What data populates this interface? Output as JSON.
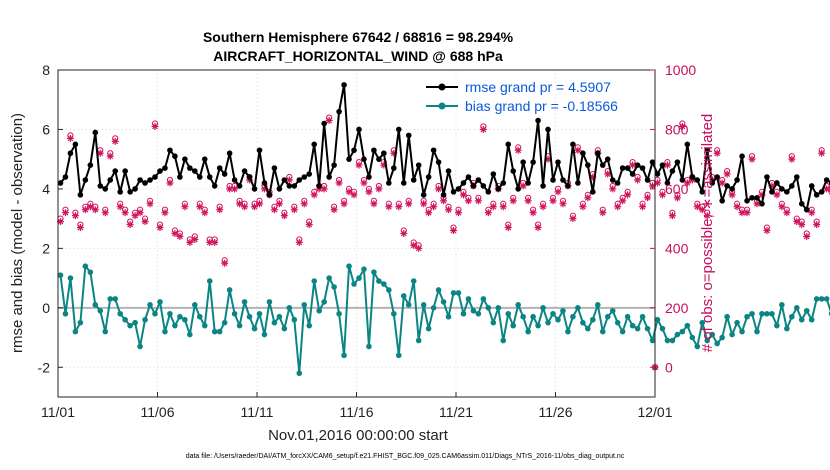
{
  "chart_data": {
    "type": "line",
    "title_line1": "Southern Hemisphere 67642 / 68816 = 98.294%",
    "title_line2": "AIRCRAFT_HORIZONTAL_WIND @ 688 hPa",
    "xlabel": "Nov.01,2016 00:00:00 start",
    "ylabel_left": "rmse and bias (model - observation)",
    "ylabel_right": "# of obs: o=possible; ∗=assimilated",
    "footnote": "data file: /Users/raeder/DAI/ATM_forcXX/CAM6_setup/f.e21.FHIST_BGC.f09_025.CAM6assim.011/Diags_NTrS_2016-11/obs_diag_output.nc",
    "x_ticks": [
      {
        "x": 0,
        "label": "11/01"
      },
      {
        "x": 5,
        "label": "11/06"
      },
      {
        "x": 10,
        "label": "11/11"
      },
      {
        "x": 15,
        "label": "11/16"
      },
      {
        "x": 20,
        "label": "11/21"
      },
      {
        "x": 25,
        "label": "11/26"
      },
      {
        "x": 30,
        "label": "12/01"
      }
    ],
    "xlim": [
      0,
      30
    ],
    "ylim_left": [
      -3,
      8
    ],
    "yticks_left": [
      -2,
      0,
      2,
      4,
      6,
      8
    ],
    "ylim_right": [
      -100,
      1000
    ],
    "yticks_right": [
      0,
      200,
      400,
      600,
      800,
      1000
    ],
    "step_days": 0.25,
    "legend": [
      {
        "label": "rmse grand pr = 4.5907",
        "color": "#000000"
      },
      {
        "label": "bias grand pr = -0.18566",
        "color": "#0b8584"
      }
    ],
    "colors": {
      "rmse": "#000000",
      "bias": "#0b8584",
      "obs": "#d1145e",
      "zero_line": "#b4b4b4"
    },
    "series": [
      {
        "name": "rmse",
        "values": [
          4.2,
          4.4,
          5.2,
          5.5,
          3.8,
          4.3,
          4.8,
          5.9,
          4.1,
          4.0,
          4.3,
          4.6,
          3.9,
          4.6,
          3.9,
          4.0,
          4.3,
          4.2,
          4.3,
          4.4,
          4.6,
          4.7,
          5.3,
          5.1,
          4.4,
          5.0,
          4.7,
          4.6,
          4.4,
          5.0,
          4.4,
          4.1,
          4.7,
          4.5,
          5.2,
          4.3,
          4.1,
          4.6,
          4.4,
          4.0,
          5.3,
          4.2,
          3.8,
          4.7,
          4.0,
          4.3,
          4.1,
          4.1,
          4.3,
          4.4,
          4.5,
          5.5,
          4.1,
          6.2,
          4.4,
          4.8,
          6.6,
          7.5,
          5.0,
          5.3,
          6.0,
          5.0,
          4.4,
          5.3,
          5.0,
          5.2,
          4.2,
          4.7,
          6.0,
          4.2,
          5.8,
          4.3,
          4.8,
          3.8,
          4.4,
          5.3,
          4.9,
          3.8,
          4.6,
          3.9,
          4.0,
          4.2,
          4.4,
          4.1,
          4.3,
          4.1,
          3.9,
          4.5,
          4.0,
          4.2,
          5.5,
          4.6,
          4.0,
          4.9,
          4.2,
          4.9,
          6.3,
          4.1,
          6.0,
          4.3,
          4.9,
          4.3,
          4.1,
          5.5,
          4.2,
          5.2,
          4.8,
          3.9,
          5.2,
          4.8,
          5.0,
          4.3,
          4.2,
          4.7,
          4.7,
          4.5,
          4.8,
          4.7,
          4.3,
          4.9,
          4.5,
          4.8,
          4.2,
          4.6,
          4.9,
          4.3,
          5.5,
          4.4,
          4.3,
          3.9,
          5.3,
          4.2,
          4.4,
          3.6,
          4.1,
          4.0,
          4.3,
          5.1,
          3.6,
          3.7,
          3.7,
          3.5,
          4.4,
          3.9,
          4.2,
          4.0,
          3.9,
          4.1,
          4.4,
          3.5,
          3.3,
          4.1,
          3.8,
          3.9,
          4.3,
          4.2,
          4.6,
          4.6
        ]
      },
      {
        "name": "bias",
        "values": [
          1.1,
          -0.2,
          1.0,
          -0.8,
          -0.5,
          1.4,
          1.2,
          0.1,
          -0.1,
          -0.8,
          0.3,
          0.3,
          -0.2,
          -0.4,
          -0.6,
          -0.5,
          -1.3,
          -0.4,
          0.1,
          -0.2,
          0.2,
          -0.8,
          -0.2,
          -0.6,
          -0.3,
          -0.4,
          -0.9,
          0.1,
          -0.3,
          -0.6,
          0.9,
          -0.8,
          -0.8,
          -0.5,
          0.6,
          -0.2,
          -0.6,
          0.2,
          -0.3,
          -0.7,
          -0.2,
          -0.9,
          0.2,
          -0.5,
          -0.3,
          -0.7,
          0.0,
          -0.4,
          -2.2,
          0.1,
          -0.6,
          0.9,
          -0.1,
          0.2,
          1.0,
          0.7,
          -0.2,
          -1.6,
          1.4,
          0.8,
          1.0,
          1.3,
          -1.3,
          1.2,
          0.9,
          0.8,
          0.6,
          -0.2,
          -1.6,
          0.4,
          0.1,
          0.9,
          -1.1,
          0.1,
          -0.7,
          0.0,
          0.6,
          0.2,
          -0.3,
          0.5,
          0.5,
          -0.2,
          0.3,
          -0.1,
          -0.2,
          0.3,
          0.0,
          -0.5,
          0.0,
          -1.1,
          -0.2,
          -0.6,
          0.1,
          -0.3,
          -0.8,
          -0.3,
          -0.6,
          0.0,
          -0.5,
          -0.2,
          -0.4,
          -0.1,
          -0.8,
          -0.3,
          0.0,
          -0.5,
          -0.7,
          -0.4,
          0.1,
          -0.8,
          -0.3,
          -0.1,
          -0.5,
          -0.8,
          -0.3,
          -0.6,
          -0.7,
          -0.3,
          -0.7,
          -1.1,
          -0.4,
          -0.7,
          -1.1,
          -1.1,
          -0.9,
          -0.8,
          -0.6,
          -1.0,
          -1.3,
          -0.5,
          -1.1,
          -0.9,
          -1.2,
          -1.0,
          -0.3,
          -0.9,
          -0.5,
          -0.8,
          -0.3,
          -0.2,
          -0.8,
          -0.2,
          -0.2,
          -0.2,
          -0.6,
          0.1,
          -0.7,
          -0.3,
          0.0,
          -0.4,
          -0.1,
          -0.4,
          0.3,
          0.3,
          0.3,
          -0.2
        ]
      },
      {
        "name": "obs_assimilated",
        "values": [
          490,
          520,
          770,
          510,
          470,
          530,
          540,
          530,
          720,
          520,
          710,
          760,
          540,
          520,
          480,
          510,
          520,
          490,
          550,
          810,
          470,
          520,
          620,
          450,
          440,
          540,
          420,
          430,
          540,
          520,
          420,
          420,
          530,
          350,
          600,
          600,
          550,
          540,
          630,
          540,
          550,
          600,
          580,
          530,
          550,
          510,
          630,
          530,
          420,
          550,
          480,
          580,
          600,
          600,
          830,
          530,
          620,
          550,
          590,
          580,
          680,
          620,
          590,
          550,
          600,
          680,
          540,
          720,
          540,
          450,
          550,
          410,
          400,
          550,
          520,
          540,
          600,
          560,
          530,
          460,
          520,
          580,
          560,
          610,
          560,
          800,
          520,
          540,
          600,
          540,
          470,
          560,
          730,
          610,
          560,
          520,
          470,
          540,
          700,
          560,
          590,
          550,
          610,
          500,
          730,
          540,
          570,
          640,
          720,
          520,
          650,
          600,
          540,
          560,
          580,
          680,
          630,
          540,
          570,
          610,
          620,
          580,
          680,
          510,
          570,
          810,
          620,
          630,
          540,
          530,
          510,
          630,
          720,
          620,
          650,
          580,
          540,
          520,
          520,
          700,
          550,
          580,
          460,
          610,
          580,
          540,
          520,
          700,
          490,
          480,
          440,
          520,
          480,
          720,
          600,
          590,
          560,
          480,
          480,
          460
        ]
      },
      {
        "name": "obs_possible",
        "values": [
          500,
          530,
          780,
          520,
          480,
          540,
          550,
          540,
          730,
          530,
          720,
          770,
          550,
          530,
          490,
          520,
          530,
          500,
          560,
          820,
          480,
          530,
          630,
          460,
          450,
          550,
          430,
          440,
          550,
          530,
          430,
          430,
          540,
          360,
          610,
          610,
          560,
          550,
          640,
          550,
          560,
          610,
          590,
          540,
          560,
          520,
          640,
          540,
          430,
          560,
          490,
          590,
          610,
          610,
          840,
          540,
          630,
          560,
          600,
          590,
          690,
          630,
          600,
          560,
          610,
          690,
          550,
          730,
          550,
          460,
          560,
          420,
          410,
          560,
          530,
          550,
          610,
          570,
          540,
          470,
          530,
          590,
          570,
          620,
          570,
          810,
          530,
          550,
          610,
          550,
          480,
          570,
          740,
          620,
          570,
          530,
          480,
          550,
          710,
          570,
          600,
          560,
          620,
          510,
          740,
          550,
          580,
          650,
          730,
          530,
          660,
          610,
          550,
          570,
          590,
          690,
          640,
          550,
          580,
          620,
          630,
          590,
          690,
          520,
          580,
          820,
          630,
          640,
          550,
          540,
          520,
          640,
          730,
          630,
          660,
          590,
          550,
          530,
          530,
          710,
          560,
          590,
          470,
          620,
          590,
          550,
          530,
          710,
          500,
          490,
          450,
          530,
          490,
          730,
          610,
          600,
          570,
          490,
          490,
          470
        ]
      }
    ]
  }
}
